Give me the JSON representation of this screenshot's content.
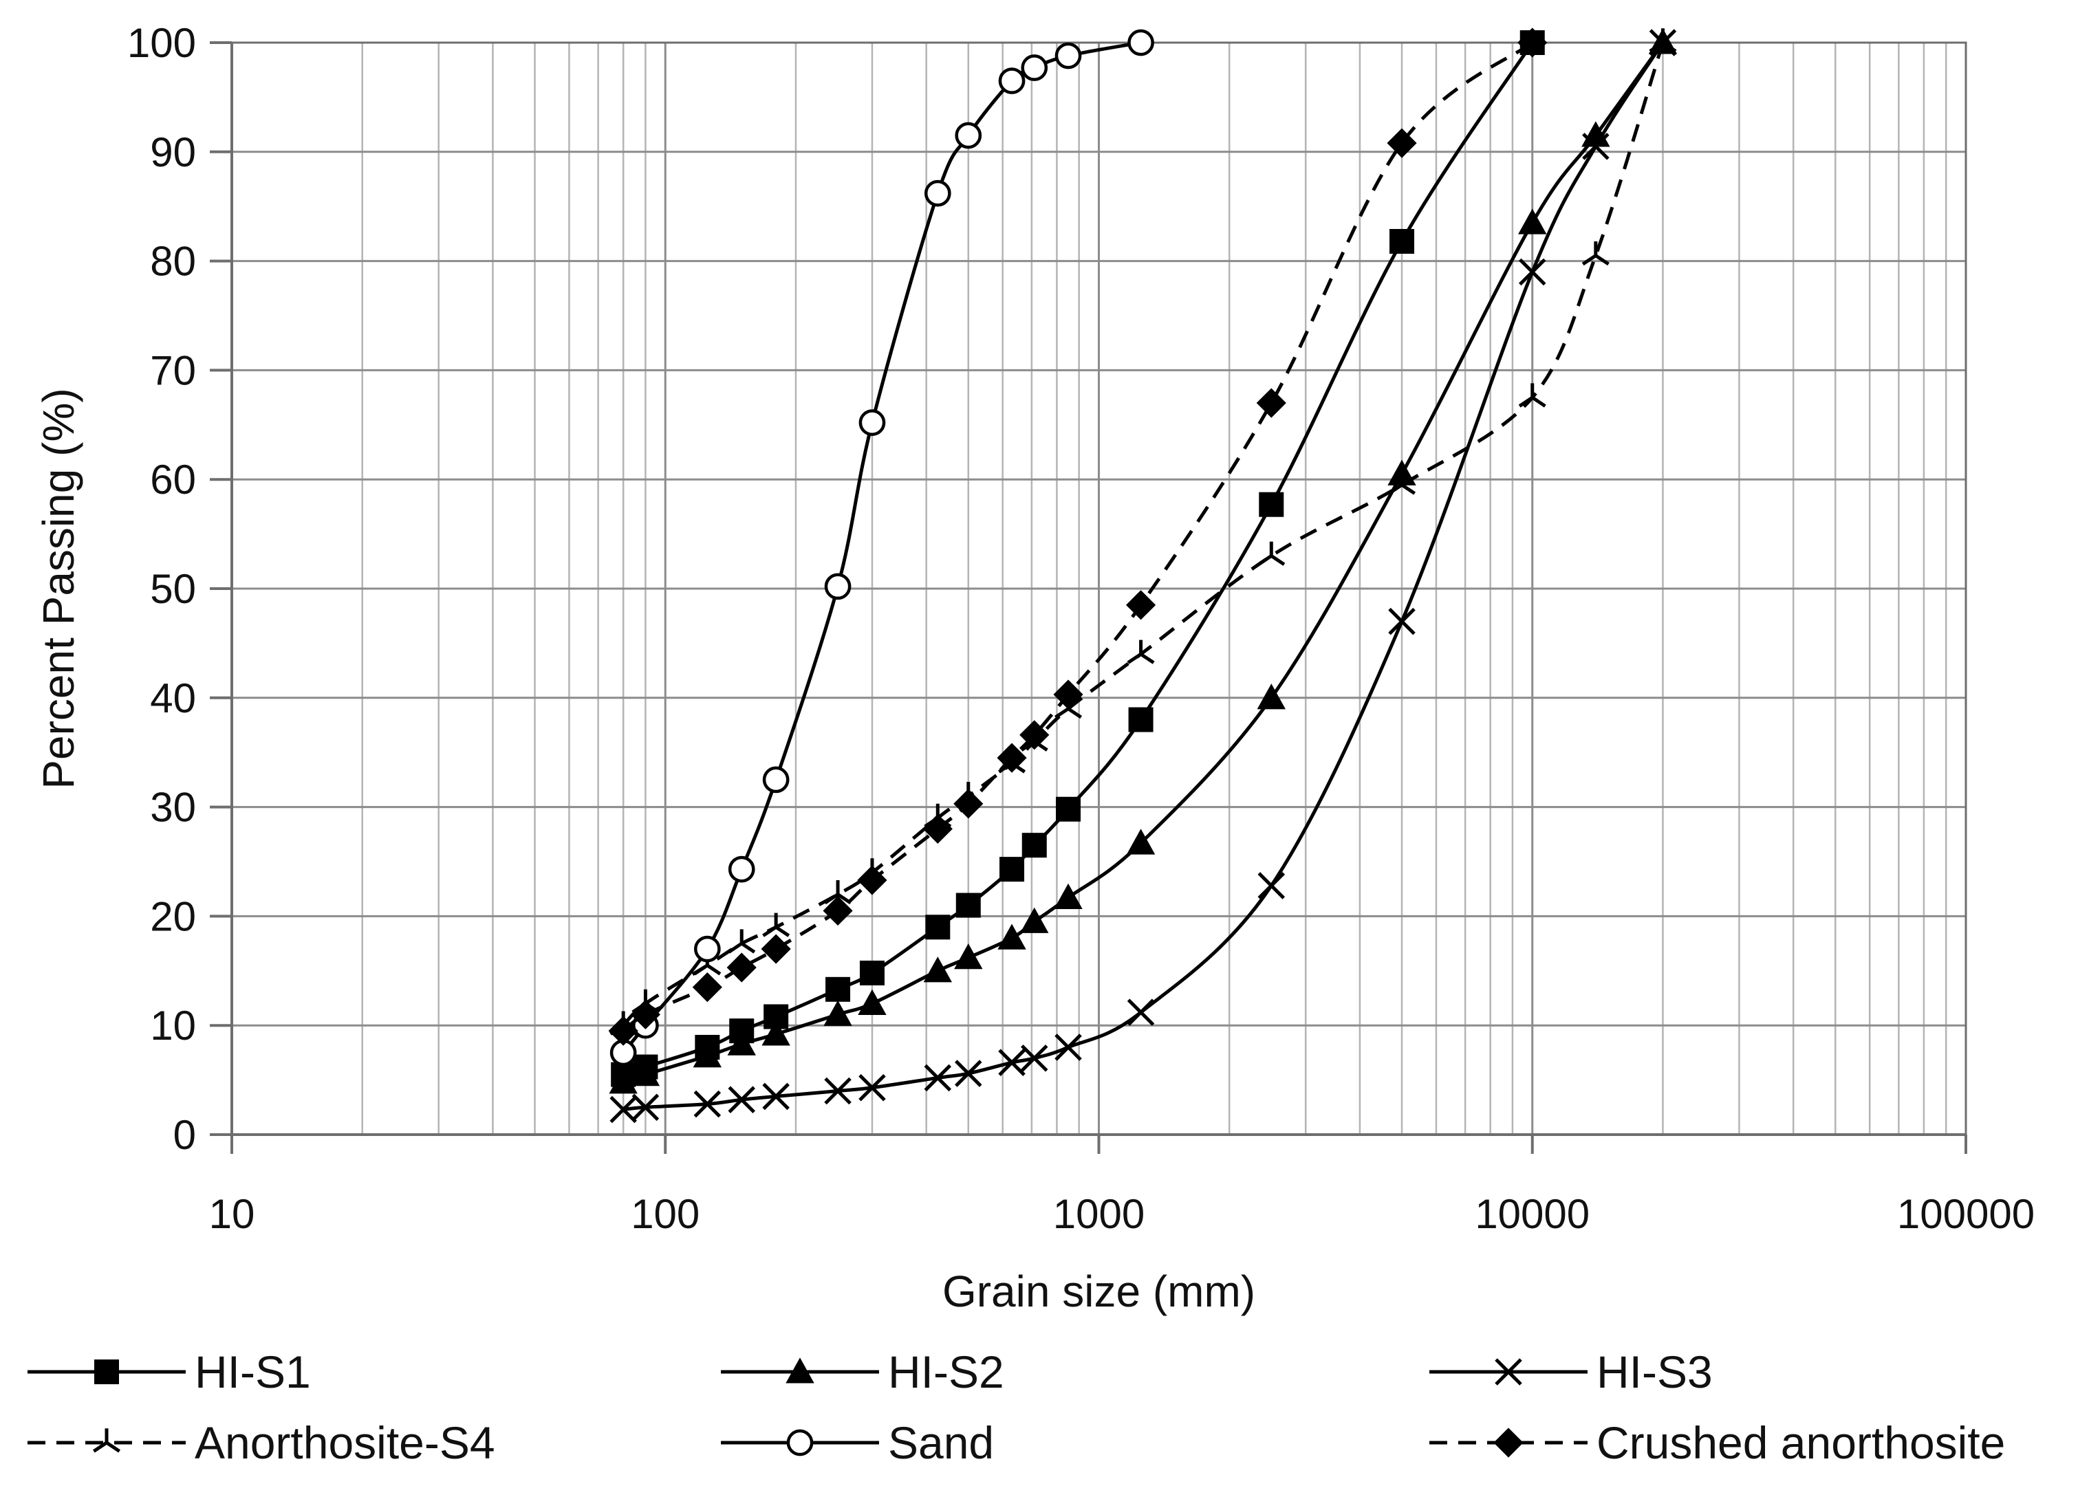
{
  "chart_data": {
    "type": "line",
    "title": "",
    "xlabel": "Grain size (mm)",
    "ylabel": "Percent Passing (%)",
    "xscale": "log",
    "xlim": [
      10,
      100000
    ],
    "ylim": [
      0,
      100
    ],
    "xticks": [
      10,
      100,
      1000,
      10000,
      100000
    ],
    "xtick_labels": [
      "10",
      "100",
      "1000",
      "10000",
      "100000"
    ],
    "yticks": [
      0,
      10,
      20,
      30,
      40,
      50,
      60,
      70,
      80,
      90,
      100
    ],
    "ytick_labels": [
      "0",
      "10",
      "20",
      "30",
      "40",
      "50",
      "60",
      "70",
      "80",
      "90",
      "100"
    ],
    "grid": true,
    "legend": "bottom",
    "colors": {
      "line": "#000000",
      "grid": "#b4b4b4",
      "axis": "#6e6e6e"
    },
    "series": [
      {
        "name": "HI-S1",
        "marker": "square",
        "dash": "solid",
        "x": [
          80,
          90,
          125,
          150,
          180,
          250,
          300,
          425,
          500,
          630,
          710,
          850,
          1250,
          2500,
          5000,
          10000
        ],
        "y": [
          5.5,
          6.2,
          8.0,
          9.5,
          10.8,
          13.3,
          14.8,
          19.0,
          21.0,
          24.3,
          26.5,
          29.8,
          38.0,
          57.7,
          81.8,
          100
        ]
      },
      {
        "name": "HI-S2",
        "marker": "triangle",
        "dash": "solid",
        "x": [
          80,
          90,
          125,
          150,
          180,
          250,
          300,
          425,
          500,
          630,
          710,
          850,
          1250,
          2500,
          5000,
          10000,
          14000,
          20000
        ],
        "y": [
          4.8,
          5.5,
          7.2,
          8.3,
          9.2,
          11.0,
          12.0,
          15.0,
          16.2,
          18.0,
          19.5,
          21.7,
          26.7,
          40.0,
          60.5,
          83.5,
          91.5,
          100
        ]
      },
      {
        "name": "HI-S3",
        "marker": "x",
        "dash": "solid",
        "x": [
          80,
          90,
          125,
          150,
          180,
          250,
          300,
          425,
          500,
          630,
          710,
          850,
          1250,
          2500,
          5000,
          10000,
          14000,
          20000
        ],
        "y": [
          2.3,
          2.5,
          2.8,
          3.2,
          3.5,
          4.0,
          4.3,
          5.2,
          5.6,
          6.6,
          7.0,
          8.0,
          11.2,
          22.8,
          47.0,
          79.0,
          90.5,
          100
        ]
      },
      {
        "name": "Anorthosite-S4",
        "marker": "tristar",
        "dash": "dashed",
        "x": [
          80,
          90,
          125,
          150,
          180,
          250,
          300,
          425,
          500,
          630,
          710,
          850,
          1250,
          2500,
          5000,
          10000,
          14000,
          20000
        ],
        "y": [
          10.0,
          12.0,
          15.5,
          17.5,
          19.0,
          22.0,
          24.0,
          29.0,
          31.0,
          34.0,
          36.0,
          39.0,
          44.0,
          53.0,
          59.5,
          67.5,
          80.5,
          100
        ]
      },
      {
        "name": "Sand",
        "marker": "circle",
        "dash": "solid",
        "x": [
          80,
          90,
          125,
          150,
          180,
          250,
          300,
          425,
          500,
          630,
          710,
          850,
          1250
        ],
        "y": [
          7.5,
          10.0,
          17.0,
          24.3,
          32.5,
          50.2,
          65.2,
          86.2,
          91.5,
          96.5,
          97.7,
          98.8,
          100
        ]
      },
      {
        "name": "Crushed anorthosite",
        "marker": "diamond",
        "dash": "dashed",
        "x": [
          80,
          90,
          125,
          150,
          180,
          250,
          300,
          425,
          500,
          630,
          710,
          850,
          1250,
          2500,
          5000,
          10000
        ],
        "y": [
          9.5,
          11.0,
          13.5,
          15.3,
          17.0,
          20.5,
          23.3,
          28.0,
          30.3,
          34.5,
          36.6,
          40.3,
          48.5,
          67.0,
          90.8,
          100
        ]
      }
    ]
  }
}
